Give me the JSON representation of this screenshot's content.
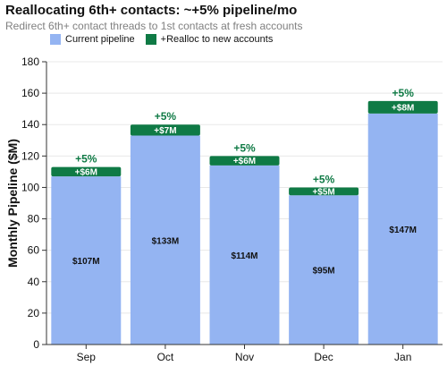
{
  "header": {
    "title": "Reallocating 6th+ contacts: ~+5% pipeline/mo",
    "subtitle": "Redirect 6th+ contact threads to 1st contacts at fresh accounts"
  },
  "colors": {
    "current": "#94b4f2",
    "realloc": "#0f7a45",
    "pct_text": "#0f7a45",
    "grid": "#e8e8e8"
  },
  "chart_data": {
    "type": "bar",
    "stacked": true,
    "title": "Reallocating 6th+ contacts: ~+5% pipeline/mo",
    "subtitle": "Redirect 6th+ contact threads to 1st contacts at fresh accounts",
    "xlabel": "",
    "ylabel": "Monthly Pipeline ($M)",
    "ylim": [
      0,
      180
    ],
    "yticks": [
      0,
      20,
      40,
      60,
      80,
      100,
      120,
      140,
      160,
      180
    ],
    "grid": true,
    "legend_position": "top-left",
    "categories": [
      "Sep",
      "Oct",
      "Nov",
      "Dec",
      "Jan"
    ],
    "series": [
      {
        "name": "Current pipeline",
        "values": [
          107,
          133,
          114,
          95,
          147
        ],
        "labels": [
          "$107M",
          "$133M",
          "$114M",
          "$95M",
          "$147M"
        ]
      },
      {
        "name": "+Realloc to new accounts",
        "values": [
          6,
          7,
          6,
          5,
          8
        ],
        "labels": [
          "+$6M",
          "+$7M",
          "+$6M",
          "+$5M",
          "+$8M"
        ]
      }
    ],
    "annotations": [
      "+5%",
      "+5%",
      "+5%",
      "+5%",
      "+5%"
    ]
  }
}
